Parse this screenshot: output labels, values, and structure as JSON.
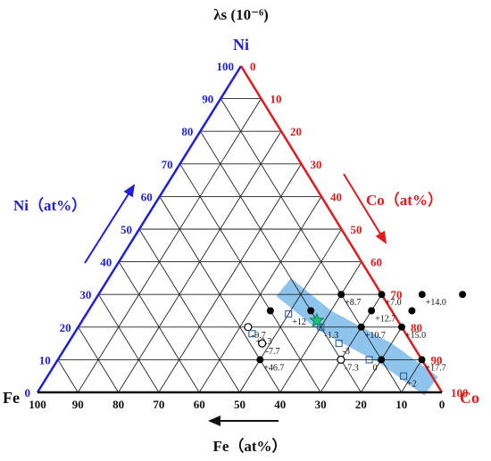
{
  "chart_data": {
    "type": "scatter",
    "title": "λs (10⁻⁶)",
    "vertex_labels": {
      "top": "Ni",
      "left": "Fe",
      "right": "Co"
    },
    "axis_labels": {
      "ni": "Ni（at%）",
      "co": "Co（at%）",
      "fe": "Fe（at%）"
    },
    "ticks": {
      "ni": [
        "0",
        "10",
        "20",
        "30",
        "40",
        "50",
        "60",
        "70",
        "80",
        "90",
        "100"
      ],
      "co": [
        "0",
        "10",
        "20",
        "30",
        "40",
        "50",
        "60",
        "70",
        "80",
        "90",
        "100"
      ],
      "fe": [
        "100",
        "90",
        "80",
        "70",
        "60",
        "50",
        "40",
        "30",
        "20",
        "10",
        "0"
      ]
    },
    "grid": true,
    "colors": {
      "ni": "#1f1fd6",
      "co": "#e01b1b",
      "band": "#4a9fe0",
      "star": "#1bbf7a"
    },
    "points": [
      {
        "ni": 20,
        "co": 42,
        "marker": "circle-open",
        "label": "-9.7"
      },
      {
        "ni": 18,
        "co": 44,
        "marker": "square-open",
        "label": "+2.3"
      },
      {
        "ni": 24,
        "co": 50,
        "marker": "square-open",
        "label": "+12"
      },
      {
        "ni": 30,
        "co": 60,
        "marker": "circle-filled",
        "label": "+8.7"
      },
      {
        "ni": 30,
        "co": 70,
        "marker": "circle-filled",
        "label": "+7.0"
      },
      {
        "ni": 30,
        "co": 80,
        "marker": "circle-filled",
        "label": "+14.0"
      },
      {
        "ni": 30,
        "co": 90,
        "marker": "circle-filled",
        "label": ""
      },
      {
        "ni": 25,
        "co": 70,
        "marker": "circle-filled",
        "label": "+12.7"
      },
      {
        "ni": 20,
        "co": 60,
        "marker": "square-open",
        "label": "-1.3"
      },
      {
        "ni": 20,
        "co": 70,
        "marker": "circle-filled",
        "label": "+10.7"
      },
      {
        "ni": 20,
        "co": 80,
        "marker": "circle-filled",
        "label": "+15.0"
      },
      {
        "ni": 25,
        "co": 80,
        "marker": "circle-filled",
        "label": ""
      },
      {
        "ni": 25,
        "co": 55,
        "marker": "circle-filled",
        "label": ""
      },
      {
        "ni": 25,
        "co": 45,
        "marker": "circle-filled",
        "label": ""
      },
      {
        "ni": 15,
        "co": 48,
        "marker": "circle-open",
        "label": "-7.7"
      },
      {
        "ni": 10,
        "co": 50,
        "marker": "circle-filled",
        "label": "+46.7"
      },
      {
        "ni": 10,
        "co": 70,
        "marker": "circle-open",
        "label": "-7.3"
      },
      {
        "ni": 15,
        "co": 67,
        "marker": "square-open",
        "label": "-3"
      },
      {
        "ni": 10,
        "co": 77,
        "marker": "square-open",
        "label": "0"
      },
      {
        "ni": 10,
        "co": 80,
        "marker": "circle-filled",
        "label": ""
      },
      {
        "ni": 10,
        "co": 90,
        "marker": "circle-filled",
        "label": "+17.7"
      },
      {
        "ni": 5,
        "co": 88,
        "marker": "square-open",
        "label": "+2"
      }
    ],
    "star": {
      "ni": 22,
      "co": 58
    },
    "band": [
      {
        "ni": 30,
        "co": 48
      },
      {
        "ni": 22,
        "co": 60
      },
      {
        "ni": 12,
        "co": 80
      },
      {
        "ni": 4,
        "co": 93
      }
    ]
  }
}
